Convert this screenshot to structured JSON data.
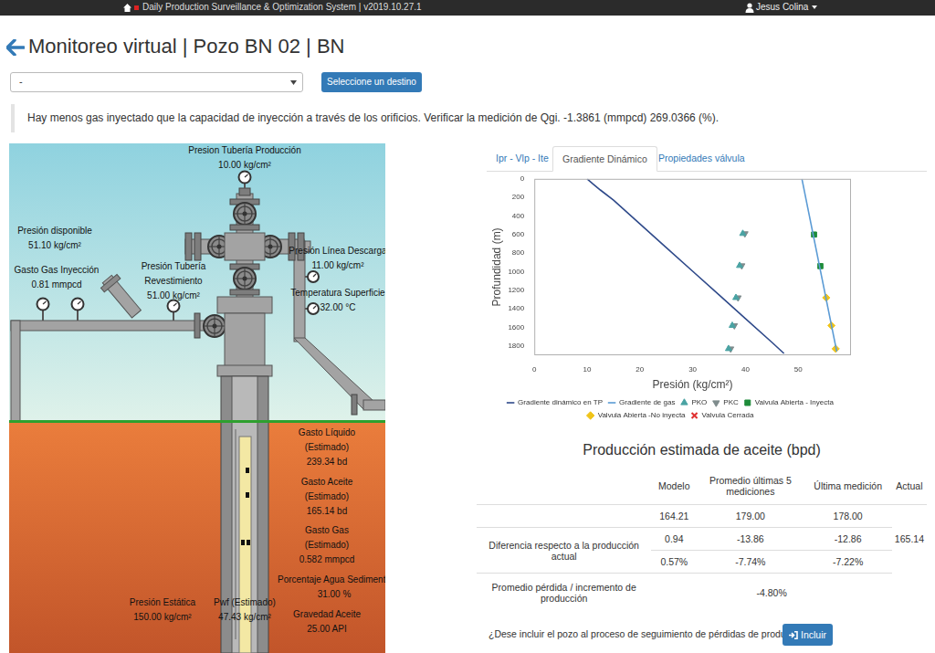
{
  "nav": {
    "title": "Daily Production Surveillance & Optimization System | v2019.10.27.1",
    "user": "Jesus Colina"
  },
  "header": {
    "title": "Monitoreo virtual | Pozo BN 02 | BN"
  },
  "controls": {
    "select": "-",
    "button": "Seleccione un destino"
  },
  "alert": "Hay menos gas inyectado que la capacidad de inyección a través de los orificios. Verificar la medición de Qgi. -1.3861 (mmpcd) 269.0366 (%).",
  "diagram": {
    "labels": [
      {
        "lines": [
          "Presion Tubería Producción"
        ],
        "value": "10.00 kg/cm²"
      },
      {
        "lines": [
          "Presión disponible"
        ],
        "value": "51.10 kg/cm²"
      },
      {
        "lines": [
          "Gasto Gas Inyección"
        ],
        "value": "0.81 mmpcd"
      },
      {
        "lines": [
          "Presión Tubería",
          "Revestimiento"
        ],
        "value": "51.00 kg/cm²"
      },
      {
        "lines": [
          "Presión Línea Descarga"
        ],
        "value": "11.00 kg/cm²"
      },
      {
        "lines": [
          "Temperatura Superficie"
        ],
        "value": "32.00 °C"
      },
      {
        "lines": [
          "Gasto Líquido",
          "(Estimado)"
        ],
        "value": "239.34 bd"
      },
      {
        "lines": [
          "Gasto Aceite",
          "(Estimado)"
        ],
        "value": "165.14 bd"
      },
      {
        "lines": [
          "Gasto Gas",
          "(Estimado)"
        ],
        "value": "0.582 mmpcd"
      },
      {
        "lines": [
          "Porcentaje Agua Sedimento"
        ],
        "value": "31.00 %"
      },
      {
        "lines": [
          "Presión Estática"
        ],
        "value": "150.00 kg/cm²"
      },
      {
        "lines": [
          "Pwf (Estimado)"
        ],
        "value": "47.43 kg/cm²"
      },
      {
        "lines": [
          "Gravedad Aceite"
        ],
        "value": "25.00 API"
      }
    ]
  },
  "tabs": {
    "items": [
      "Ipr - Vlp - Ite",
      "Gradiente Dinámico",
      "Propiedades válvula"
    ],
    "active": "Gradiente Dinámico"
  },
  "chart_data": {
    "type": "scatter",
    "x_label": "Presión (kg/cm²)",
    "y_label": "Profundidad (m)",
    "xlim": [
      0,
      60
    ],
    "xticks": [
      0,
      10,
      20,
      30,
      40,
      50
    ],
    "ylim": [
      1900,
      0
    ],
    "yticks": [
      0,
      200,
      400,
      600,
      800,
      1000,
      1200,
      1400,
      1600,
      1800
    ],
    "grid": false,
    "legend": "bottom",
    "series": [
      {
        "name": "Gradiente dinámico en TP",
        "type": "line",
        "color": "#2f4a8a",
        "marker": "line",
        "x": [
          10,
          11,
          12.5,
          15,
          20,
          25,
          30,
          35,
          40,
          45,
          47.3
        ],
        "values": [
          0,
          50,
          120,
          230,
          485,
          740,
          995,
          1250,
          1505,
          1760,
          1880
        ]
      },
      {
        "name": "Gradiente de gas",
        "type": "line",
        "color": "#5b9bd5",
        "marker": "line",
        "x": [
          50.7,
          57.3
        ],
        "values": [
          0,
          1860
        ]
      },
      {
        "name": "PKO",
        "type": "scatter",
        "color": "#4aa3a3",
        "marker": "triangle",
        "x": [
          39.5,
          38.9,
          38.2,
          37.5,
          36.8
        ],
        "values": [
          590,
          935,
          1280,
          1580,
          1830
        ]
      },
      {
        "name": "PKC",
        "type": "scatter",
        "color": "#7f8c8d",
        "marker": "triangle-down",
        "x": [
          39.9,
          39.3,
          38.6,
          37.9,
          37.2
        ],
        "values": [
          590,
          935,
          1280,
          1580,
          1830
        ]
      },
      {
        "name": "Valvula Abierta - Inyecta",
        "type": "scatter",
        "color": "#1e8c3a",
        "marker": "square",
        "x": [
          53,
          54.2
        ],
        "values": [
          600,
          940
        ]
      },
      {
        "name": "Valvula Abierta -No inyecta",
        "type": "scatter",
        "color": "#f0c419",
        "marker": "diamond",
        "x": [
          55.3,
          56.3,
          57.1
        ],
        "values": [
          1280,
          1580,
          1830
        ]
      },
      {
        "name": "Valvula Cerrada",
        "type": "scatter",
        "color": "#e03030",
        "marker": "cross",
        "x": [],
        "values": []
      }
    ]
  },
  "production": {
    "title": "Producción estimada de aceite (bpd)",
    "header": [
      "Modelo",
      "Promedio últimas 5 mediciones",
      "Última medición",
      "Actual"
    ],
    "estimates": [
      "164.21",
      "179.00",
      "178.00"
    ],
    "difference_label": "Diferencia respecto a la producción actual",
    "difference": [
      [
        "0.94",
        "-13.86",
        "-12.86"
      ],
      [
        "0.57%",
        "-7.74%",
        "-7.22%"
      ]
    ],
    "actual": "165.14",
    "average_label": "Promedio pérdida / incremento de producción",
    "average": "-4.80%"
  },
  "question": "¿Dese incluir el pozo al proceso de seguimiento de pérdidas de producción?",
  "include_button": "Incluir"
}
